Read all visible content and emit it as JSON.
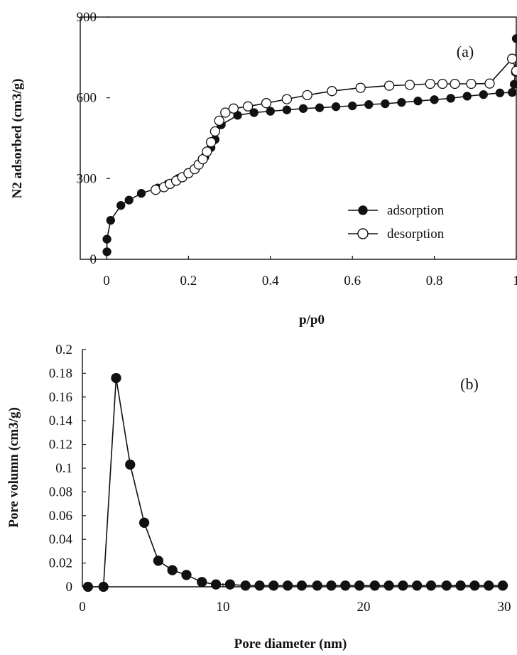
{
  "chart_data": [
    {
      "type": "line",
      "panel_label": "(a)",
      "xlabel": "p/p0",
      "ylabel": "N2 adsorbed (cm3/g)",
      "xlim": [
        0,
        1
      ],
      "ylim": [
        0,
        900
      ],
      "xticks": [
        0,
        0.2,
        0.4,
        0.6,
        0.8,
        1
      ],
      "xtick_labels": [
        "0",
        "0.2",
        "0.4",
        "0.6",
        "0.8",
        "1"
      ],
      "yticks": [
        0,
        300,
        600,
        900
      ],
      "ytick_labels": [
        "0",
        "300",
        "600",
        "900"
      ],
      "grid": false,
      "legend_position": "bottom-right",
      "series": [
        {
          "name": "adsorption",
          "marker": "filled-circle",
          "x": [
            0.001,
            0.001,
            0.01,
            0.035,
            0.055,
            0.085,
            0.125,
            0.15,
            0.175,
            0.2,
            0.225,
            0.24,
            0.255,
            0.265,
            0.28,
            0.32,
            0.36,
            0.4,
            0.44,
            0.48,
            0.52,
            0.56,
            0.6,
            0.64,
            0.68,
            0.72,
            0.76,
            0.8,
            0.84,
            0.88,
            0.92,
            0.96,
            0.99,
            0.995,
            0.998,
            1.0
          ],
          "y": [
            28,
            75,
            145,
            200,
            220,
            245,
            265,
            280,
            300,
            320,
            350,
            380,
            415,
            445,
            500,
            535,
            545,
            550,
            555,
            560,
            563,
            567,
            570,
            575,
            578,
            583,
            588,
            593,
            598,
            606,
            612,
            618,
            620,
            650,
            695,
            820
          ]
        },
        {
          "name": "desorption",
          "marker": "open-circle",
          "x": [
            0.12,
            0.14,
            0.155,
            0.17,
            0.185,
            0.2,
            0.215,
            0.225,
            0.235,
            0.245,
            0.255,
            0.265,
            0.275,
            0.29,
            0.31,
            0.345,
            0.39,
            0.44,
            0.49,
            0.55,
            0.62,
            0.69,
            0.74,
            0.79,
            0.82,
            0.85,
            0.89,
            0.935,
            0.99,
            1.0
          ],
          "y": [
            258,
            268,
            280,
            292,
            305,
            320,
            335,
            352,
            372,
            400,
            435,
            475,
            515,
            545,
            560,
            568,
            580,
            595,
            610,
            625,
            637,
            645,
            648,
            652,
            652,
            652,
            652,
            653,
            745,
            700
          ]
        }
      ]
    },
    {
      "type": "line",
      "panel_label": "(b)",
      "xlabel": "Pore diameter (nm)",
      "ylabel": "Pore volumn (cm3/g)",
      "xlim": [
        0,
        30
      ],
      "ylim": [
        0,
        0.2
      ],
      "xticks": [
        0,
        10,
        20,
        30
      ],
      "xtick_labels": [
        "0",
        "10",
        "20",
        "30"
      ],
      "yticks": [
        0,
        0.02,
        0.04,
        0.06,
        0.08,
        0.1,
        0.12,
        0.14,
        0.16,
        0.18,
        0.2
      ],
      "ytick_labels": [
        "0",
        "0.02",
        "0.04",
        "0.06",
        "0.08",
        "0.1",
        "0.12",
        "0.14",
        "0.16",
        "0.18",
        "0.2"
      ],
      "grid": false,
      "series": [
        {
          "marker": "filled-circle",
          "x": [
            0.4,
            1.5,
            2.4,
            3.4,
            4.4,
            5.4,
            6.4,
            7.4,
            8.5,
            9.5,
            10.5,
            11.6,
            12.6,
            13.6,
            14.6,
            15.6,
            16.7,
            17.7,
            18.7,
            19.7,
            20.8,
            21.8,
            22.8,
            23.8,
            24.8,
            25.9,
            26.9,
            27.9,
            28.9,
            29.9
          ],
          "y": [
            0,
            0,
            0.176,
            0.103,
            0.054,
            0.022,
            0.014,
            0.01,
            0.004,
            0.002,
            0.002,
            0.001,
            0.001,
            0.001,
            0.001,
            0.001,
            0.001,
            0.001,
            0.001,
            0.001,
            0.001,
            0.001,
            0.001,
            0.001,
            0.001,
            0.001,
            0.001,
            0.001,
            0.001,
            0.001
          ]
        }
      ]
    }
  ]
}
